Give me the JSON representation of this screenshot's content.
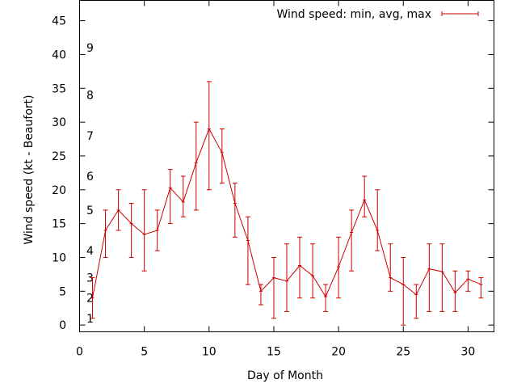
{
  "chart_data": {
    "type": "line",
    "title": "",
    "xlabel": "Day of Month",
    "ylabel": "Wind speed (kt - Beaufort)",
    "xlim": [
      0,
      32
    ],
    "ylim": [
      -1,
      48
    ],
    "xticks": [
      0,
      5,
      10,
      15,
      20,
      25,
      30
    ],
    "yticks": [
      0,
      5,
      10,
      15,
      20,
      25,
      30,
      35,
      40,
      45
    ],
    "beaufort_marks": [
      {
        "label": "1",
        "y": 1
      },
      {
        "label": "2",
        "y": 4
      },
      {
        "label": "3",
        "y": 7
      },
      {
        "label": "4",
        "y": 11
      },
      {
        "label": "5",
        "y": 17
      },
      {
        "label": "6",
        "y": 22
      },
      {
        "label": "7",
        "y": 28
      },
      {
        "label": "8",
        "y": 34
      },
      {
        "label": "9",
        "y": 41
      }
    ],
    "legend": "top-right",
    "grid": false,
    "series": [
      {
        "name": "Wind speed: min, avg, max",
        "color": "#cc0000",
        "x": [
          1,
          2,
          3,
          4,
          5,
          6,
          7,
          8,
          9,
          10,
          11,
          12,
          13,
          14,
          15,
          16,
          17,
          18,
          19,
          20,
          21,
          22,
          23,
          24,
          25,
          26,
          27,
          28,
          29,
          30,
          31
        ],
        "avg": [
          4,
          14,
          17,
          15,
          13.4,
          14,
          20.3,
          18.2,
          24,
          29,
          25.5,
          18,
          12.5,
          5,
          7,
          6.5,
          8.8,
          7.3,
          4.2,
          8.6,
          13.7,
          18.5,
          14,
          7,
          6,
          4.5,
          8.3,
          7.9,
          4.8,
          6.8,
          6
        ],
        "min": [
          1,
          10,
          14,
          10,
          8,
          11,
          15,
          16,
          17,
          20,
          21,
          13,
          6,
          3,
          1,
          2,
          4,
          4,
          2,
          4,
          8,
          16,
          11,
          5,
          0,
          1,
          2,
          2,
          2,
          5,
          4
        ],
        "max": [
          7,
          17,
          20,
          18,
          20,
          17,
          23,
          22,
          30,
          36,
          29,
          21,
          16,
          6,
          10,
          12,
          13,
          12,
          6,
          13,
          17,
          22,
          20,
          12,
          10,
          6,
          12,
          12,
          8,
          8,
          7
        ]
      }
    ]
  }
}
